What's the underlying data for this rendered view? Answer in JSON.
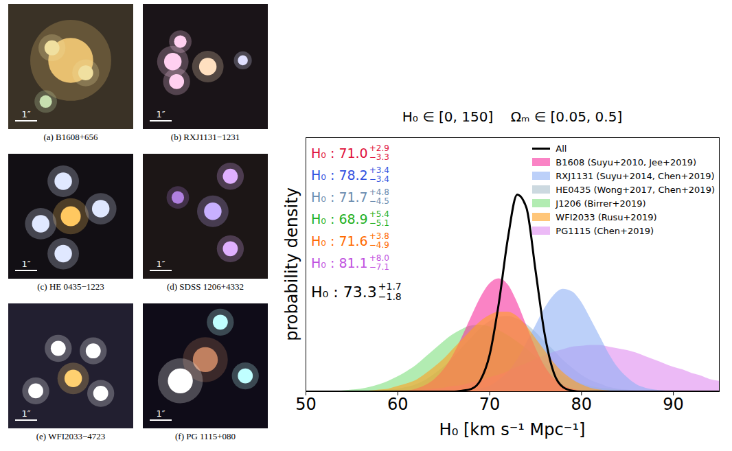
{
  "chart_data": {
    "type": "area",
    "title": "H₀ ∈ [0, 150]    Ωₘ ∈ [0.05, 0.5]",
    "x_label": "H₀ [km s⁻¹ Mpc⁻¹]",
    "y_label": "probability density",
    "x": [
      50,
      51,
      52,
      53,
      54,
      55,
      56,
      57,
      58,
      59,
      60,
      61,
      62,
      63,
      64,
      65,
      66,
      67,
      68,
      69,
      70,
      71,
      72,
      73,
      74,
      75,
      76,
      77,
      78,
      79,
      80,
      81,
      82,
      83,
      84,
      85,
      86,
      87,
      88,
      89,
      90,
      91,
      92,
      93,
      94,
      95
    ],
    "series": [
      {
        "name": "HE0435 (Wong+2017, Chen+2019)",
        "color": "#aac0cc",
        "type": "area",
        "values": [
          0,
          0,
          0,
          0,
          0,
          0,
          0,
          0,
          0.001,
          0.002,
          0.003,
          0.005,
          0.008,
          0.013,
          0.02,
          0.028,
          0.038,
          0.05,
          0.061,
          0.072,
          0.08,
          0.085,
          0.086,
          0.083,
          0.077,
          0.068,
          0.057,
          0.047,
          0.036,
          0.027,
          0.019,
          0.013,
          0.009,
          0.005,
          0.003,
          0.002,
          0.001,
          0,
          0,
          0,
          0,
          0,
          0,
          0,
          0,
          0
        ]
      },
      {
        "name": "J1206 (Birrer+2019)",
        "color": "#7ee07e",
        "type": "area",
        "values": [
          0,
          0,
          0,
          0,
          0.001,
          0.002,
          0.003,
          0.005,
          0.008,
          0.012,
          0.017,
          0.023,
          0.03,
          0.039,
          0.048,
          0.057,
          0.065,
          0.071,
          0.075,
          0.076,
          0.074,
          0.07,
          0.064,
          0.057,
          0.049,
          0.04,
          0.032,
          0.025,
          0.018,
          0.013,
          0.009,
          0.006,
          0.004,
          0.003,
          0.002,
          0.001,
          0,
          0,
          0,
          0,
          0,
          0,
          0,
          0,
          0,
          0
        ]
      },
      {
        "name": "PG1115 (Chen+2019)",
        "color": "#e08cf0",
        "type": "area",
        "values": [
          0,
          0,
          0,
          0,
          0,
          0,
          0,
          0,
          0,
          0,
          0.001,
          0.001,
          0.001,
          0.002,
          0.003,
          0.004,
          0.006,
          0.007,
          0.01,
          0.012,
          0.016,
          0.019,
          0.023,
          0.028,
          0.032,
          0.037,
          0.041,
          0.045,
          0.048,
          0.051,
          0.052,
          0.053,
          0.053,
          0.051,
          0.049,
          0.047,
          0.044,
          0.04,
          0.036,
          0.032,
          0.028,
          0.025,
          0.021,
          0.018,
          0.014,
          0.012
        ]
      },
      {
        "name": "RXJ1131 (Suyu+2014, Chen+2019)",
        "color": "#8fb0f5",
        "type": "area",
        "values": [
          0,
          0,
          0,
          0,
          0,
          0,
          0,
          0,
          0,
          0,
          0,
          0,
          0,
          0,
          0,
          0,
          0,
          0.001,
          0.001,
          0.003,
          0.006,
          0.013,
          0.022,
          0.036,
          0.055,
          0.075,
          0.095,
          0.11,
          0.117,
          0.114,
          0.102,
          0.083,
          0.063,
          0.043,
          0.027,
          0.016,
          0.008,
          0.004,
          0.002,
          0.001,
          0,
          0,
          0,
          0,
          0,
          0
        ]
      },
      {
        "name": "B1608 (Suyu+2010, Jee+2019)",
        "color": "#f7309f",
        "type": "area",
        "values": [
          0,
          0,
          0,
          0,
          0,
          0,
          0,
          0,
          0,
          0,
          0.001,
          0.001,
          0.003,
          0.007,
          0.014,
          0.025,
          0.041,
          0.062,
          0.085,
          0.107,
          0.123,
          0.129,
          0.122,
          0.102,
          0.076,
          0.05,
          0.029,
          0.015,
          0.007,
          0.003,
          0.001,
          0,
          0,
          0,
          0,
          0,
          0,
          0,
          0,
          0,
          0,
          0,
          0,
          0,
          0,
          0
        ]
      },
      {
        "name": "WFI2033 (Rusu+2019)",
        "color": "#ffa020",
        "type": "area",
        "values": [
          0,
          0,
          0,
          0,
          0,
          0,
          0,
          0.001,
          0.002,
          0.003,
          0.006,
          0.009,
          0.013,
          0.02,
          0.028,
          0.037,
          0.048,
          0.059,
          0.07,
          0.08,
          0.087,
          0.091,
          0.091,
          0.086,
          0.075,
          0.061,
          0.047,
          0.033,
          0.022,
          0.014,
          0.008,
          0.004,
          0.002,
          0.001,
          0,
          0,
          0,
          0,
          0,
          0,
          0,
          0,
          0,
          0,
          0,
          0
        ]
      },
      {
        "name": "All",
        "color": "#000000",
        "type": "line",
        "values": [
          0,
          0,
          0,
          0,
          0,
          0,
          0,
          0,
          0,
          0,
          0,
          0,
          0,
          0,
          0,
          0,
          0,
          0.001,
          0.003,
          0.013,
          0.042,
          0.101,
          0.176,
          0.225,
          0.21,
          0.138,
          0.065,
          0.021,
          0.005,
          0.001,
          0,
          0,
          0,
          0,
          0,
          0,
          0,
          0,
          0,
          0,
          0,
          0,
          0,
          0,
          0,
          0
        ]
      }
    ],
    "legend_order": [
      "All",
      "B1608 (Suyu+2010, Jee+2019)",
      "RXJ1131 (Suyu+2014, Chen+2019)",
      "HE0435 (Wong+2017, Chen+2019)",
      "J1206 (Birrer+2019)",
      "WFI2033 (Rusu+2019)",
      "PG1115 (Chen+2019)"
    ],
    "annotations": [
      {
        "text": "H₀ : 71.0",
        "upper": "+2.9",
        "lower": "−3.3",
        "color": "#e0103a"
      },
      {
        "text": "H₀ : 78.2",
        "upper": "+3.4",
        "lower": "−3.4",
        "color": "#3050e0"
      },
      {
        "text": "H₀ : 71.7",
        "upper": "+4.8",
        "lower": "−4.5",
        "color": "#6a8caf"
      },
      {
        "text": "H₀ : 68.9",
        "upper": "+5.4",
        "lower": "−5.1",
        "color": "#22b022"
      },
      {
        "text": "H₀ : 71.6",
        "upper": "+3.8",
        "lower": "−4.9",
        "color": "#ff6a00"
      },
      {
        "text": "H₀ : 81.1",
        "upper": "+8.0",
        "lower": "−7.1",
        "color": "#c050e0"
      },
      {
        "text": "H₀ : 73.3",
        "upper": "+1.7",
        "lower": "−1.8",
        "color": "#000000"
      }
    ],
    "xlim": [
      50,
      95
    ],
    "xticks": [
      50,
      60,
      70,
      80,
      90
    ],
    "ylim": [
      0,
      0.29
    ],
    "tick_labels": "x",
    "legend": "upper right"
  },
  "panels": [
    {
      "caption": "(a) B1608+656",
      "scale_bar": "1″"
    },
    {
      "caption": "(b) RXJ1131−1231",
      "scale_bar": "1″"
    },
    {
      "caption": "(c) HE 0435−1223",
      "scale_bar": "1″"
    },
    {
      "caption": "(d) SDSS 1206+4332",
      "scale_bar": "1″"
    },
    {
      "caption": "(e) WFI2033−4723",
      "scale_bar": "1″"
    },
    {
      "caption": "(f) PG 1115+080",
      "scale_bar": "1″"
    }
  ]
}
